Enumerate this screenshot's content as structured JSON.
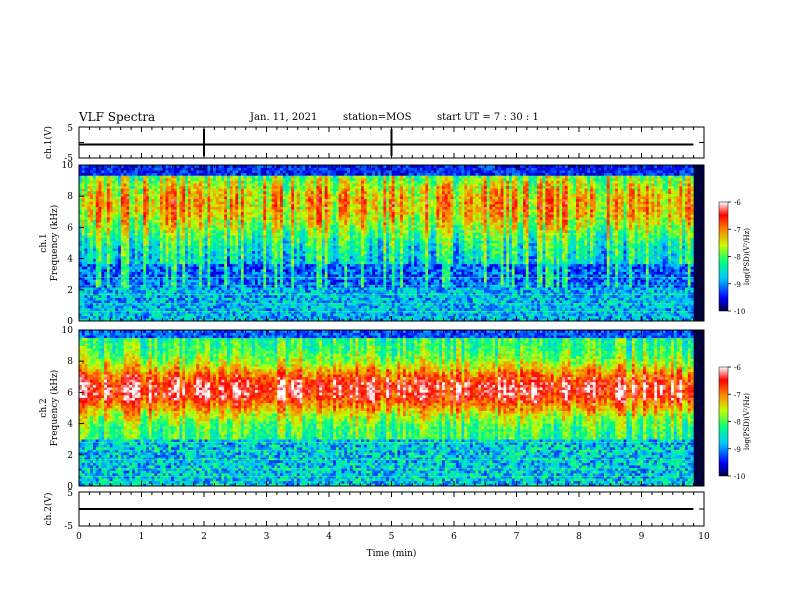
{
  "header": {
    "title": "VLF Spectra",
    "date": "Jan. 11, 2021",
    "station": "station=MOS",
    "start": "start UT =  7 : 30 : 1"
  },
  "chart_data": [
    {
      "type": "line",
      "ylabel": "ch.1(V)",
      "ylim": [
        -5,
        5
      ],
      "xlim": [
        0,
        10
      ],
      "series": [
        {
          "x": [
            0,
            9.83
          ],
          "y": [
            0,
            0
          ]
        }
      ]
    },
    {
      "type": "heatmap",
      "ylabel_line1": "ch.1",
      "ylabel_line2": "Frequency (kHz)",
      "xlim": [
        0,
        10
      ],
      "ylim": [
        0,
        10
      ],
      "yticks": [
        "0",
        "2",
        "4",
        "6",
        "8",
        "10"
      ],
      "colorbar": {
        "label": "log(PSD)(V²/Hz)",
        "range": [
          -10,
          -6
        ],
        "ticks": [
          "-6",
          "-7",
          "-8",
          "-9",
          "-10"
        ]
      },
      "data_extent_min": [
        0,
        9.83
      ]
    },
    {
      "type": "heatmap",
      "ylabel_line1": "ch.2",
      "ylabel_line2": "Frequency (kHz)",
      "xlim": [
        0,
        10
      ],
      "ylim": [
        0,
        10
      ],
      "yticks": [
        "0",
        "2",
        "4",
        "6",
        "8",
        "10"
      ],
      "colorbar": {
        "label": "log(PSD)(V²/Hz)",
        "range": [
          -10,
          -6
        ],
        "ticks": [
          "-6",
          "-7",
          "-8",
          "-9",
          "-10"
        ]
      },
      "data_extent_min": [
        0,
        9.83
      ]
    },
    {
      "type": "line",
      "ylabel": "ch.2(V)",
      "ylim": [
        -5,
        5
      ],
      "xlim": [
        0,
        10
      ],
      "xlabel": "Time (min)",
      "xticks": [
        "0",
        "1",
        "2",
        "3",
        "4",
        "5",
        "6",
        "7",
        "8",
        "9",
        "10"
      ],
      "series": [
        {
          "x": [
            0,
            9.83
          ],
          "y": [
            0,
            0
          ]
        }
      ]
    }
  ],
  "colors": {
    "ink": "#000000",
    "background": "#ffffff",
    "spectrogram_bg": "#00003a"
  }
}
